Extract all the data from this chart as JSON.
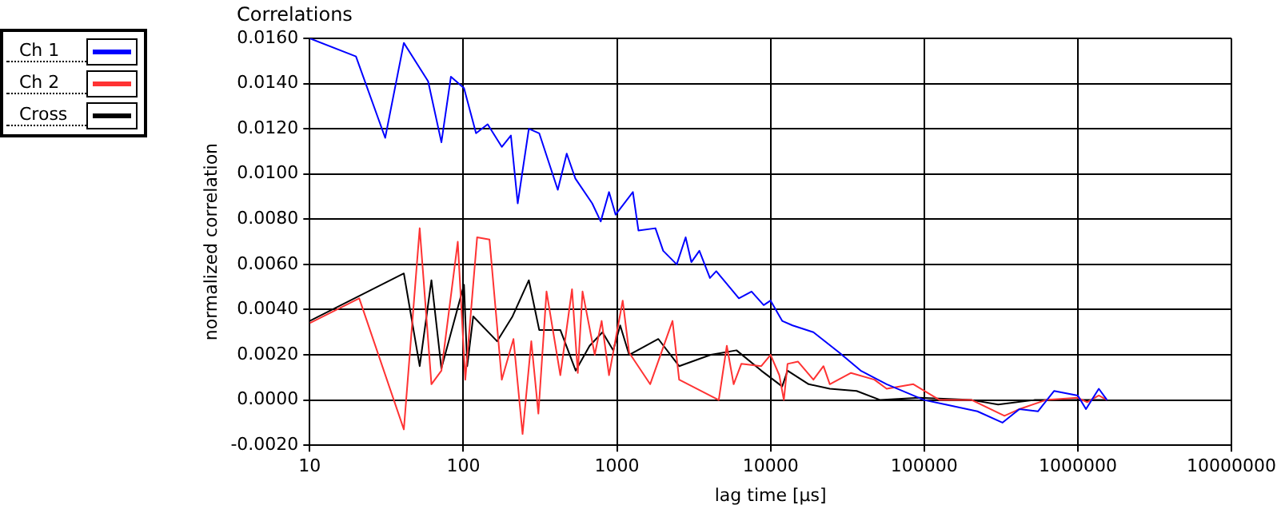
{
  "chart_data": {
    "type": "line",
    "title": "Correlations",
    "xlabel": "lag time [µs]",
    "ylabel": "normalized correlation",
    "log": "x",
    "xlim": [
      10,
      10000000
    ],
    "xticks": [
      10,
      100,
      1000,
      10000,
      100000,
      1000000,
      10000000
    ],
    "ylim": [
      -0.002,
      0.016
    ],
    "yticks": [
      {
        "value": -0.002,
        "label": "-0.0020"
      },
      {
        "value": 0,
        "label": "0.0000"
      },
      {
        "value": 0.002,
        "label": "0.0020"
      },
      {
        "value": 0.004,
        "label": "0.0040"
      },
      {
        "value": 0.006,
        "label": "0.0060"
      },
      {
        "value": 0.008,
        "label": "0.0080"
      },
      {
        "value": 0.01,
        "label": "0.0100"
      },
      {
        "value": 0.012,
        "label": "0.0120"
      },
      {
        "value": 0.014,
        "label": "0.0140"
      },
      {
        "value": 0.016,
        "label": "0.0160"
      }
    ],
    "grid": true,
    "legend": "top left",
    "marker": "none",
    "line_style": "solid",
    "series": [
      {
        "name": "Ch 1",
        "color": "#0000ff",
        "x": [
          10,
          20,
          31,
          41,
          59,
          72,
          83,
          101,
          121,
          144,
          178,
          204,
          226,
          267,
          312,
          412,
          471,
          536,
          690,
          784,
          888,
          980,
          1270,
          1380,
          1780,
          2000,
          2450,
          2800,
          3050,
          3440,
          4030,
          4430,
          6220,
          7520,
          9020,
          10000,
          11900,
          13900,
          19000,
          28000,
          38600,
          57000,
          100000,
          138000,
          222000,
          323000,
          417000,
          550000,
          700000,
          1000000,
          1130000,
          1370000,
          1550000
        ],
        "values": [
          0.016,
          0.0152,
          0.0116,
          0.0158,
          0.0141,
          0.0114,
          0.0143,
          0.0138,
          0.0118,
          0.0122,
          0.0112,
          0.0117,
          0.0087,
          0.012,
          0.0118,
          0.0093,
          0.0109,
          0.0098,
          0.0087,
          0.0079,
          0.0092,
          0.0082,
          0.0092,
          0.0075,
          0.0076,
          0.0066,
          0.006,
          0.0072,
          0.0061,
          0.0066,
          0.0054,
          0.0057,
          0.0045,
          0.0048,
          0.0042,
          0.0044,
          0.0035,
          0.0033,
          0.003,
          0.0021,
          0.0013,
          0.0007,
          0,
          -0.0002,
          -0.0005,
          -0.001,
          -0.0004,
          -0.0005,
          0.0004,
          0.0002,
          -0.0004,
          0.0005,
          0
        ]
      },
      {
        "name": "Ch 2",
        "color": "#ff3333",
        "x": [
          10,
          21,
          41,
          52,
          62,
          72,
          92,
          103,
          123,
          148,
          178,
          212,
          243,
          277,
          308,
          348,
          428,
          510,
          556,
          597,
          717,
          795,
          888,
          1090,
          1200,
          1645,
          2300,
          2540,
          4600,
          5190,
          5750,
          6450,
          8700,
          10000,
          11400,
          12200,
          12900,
          15100,
          19000,
          22100,
          24300,
          33400,
          47400,
          57000,
          85000,
          126000,
          204000,
          333000,
          417000,
          620000,
          1000000,
          1150000,
          1370000,
          1550000
        ],
        "values": [
          0.0034,
          0.0045,
          -0.0013,
          0.0076,
          0.0007,
          0.0013,
          0.007,
          0.0009,
          0.0072,
          0.0071,
          0.0009,
          0.0027,
          -0.0015,
          0.0026,
          -0.0006,
          0.0048,
          0.0011,
          0.0049,
          0.0012,
          0.0048,
          0.002,
          0.0035,
          0.0011,
          0.0044,
          0.0021,
          0.0007,
          0.0035,
          0.0009,
          0,
          0.0024,
          0.0007,
          0.0016,
          0.0015,
          0.002,
          0.0011,
          0,
          0.0016,
          0.0017,
          0.0009,
          0.0015,
          0.0007,
          0.0012,
          0.0009,
          0.0005,
          0.0007,
          0,
          0,
          -0.0007,
          -0.0004,
          0,
          0.0001,
          -0.0001,
          0.0002,
          0
        ]
      },
      {
        "name": "Cross",
        "color": "#000000",
        "x": [
          10,
          41,
          52,
          62,
          72,
          101,
          106,
          116,
          166,
          209,
          267,
          312,
          428,
          539,
          664,
          805,
          946,
          1050,
          1200,
          1860,
          2540,
          4080,
          6000,
          8700,
          11900,
          12900,
          17700,
          24300,
          36300,
          51800,
          93000,
          204000,
          303000,
          521000,
          1000000,
          1490000
        ],
        "values": [
          0.0035,
          0.0056,
          0.0015,
          0.0053,
          0.0014,
          0.0051,
          0.0015,
          0.0037,
          0.0026,
          0.0037,
          0.0053,
          0.0031,
          0.0031,
          0.0013,
          0.0024,
          0.003,
          0.0022,
          0.0033,
          0.002,
          0.0027,
          0.0015,
          0.002,
          0.0022,
          0.0013,
          0.0006,
          0.0013,
          0.0007,
          0.0005,
          0.0004,
          0,
          0.0001,
          0,
          -0.0002,
          0,
          0,
          0
        ]
      }
    ]
  }
}
